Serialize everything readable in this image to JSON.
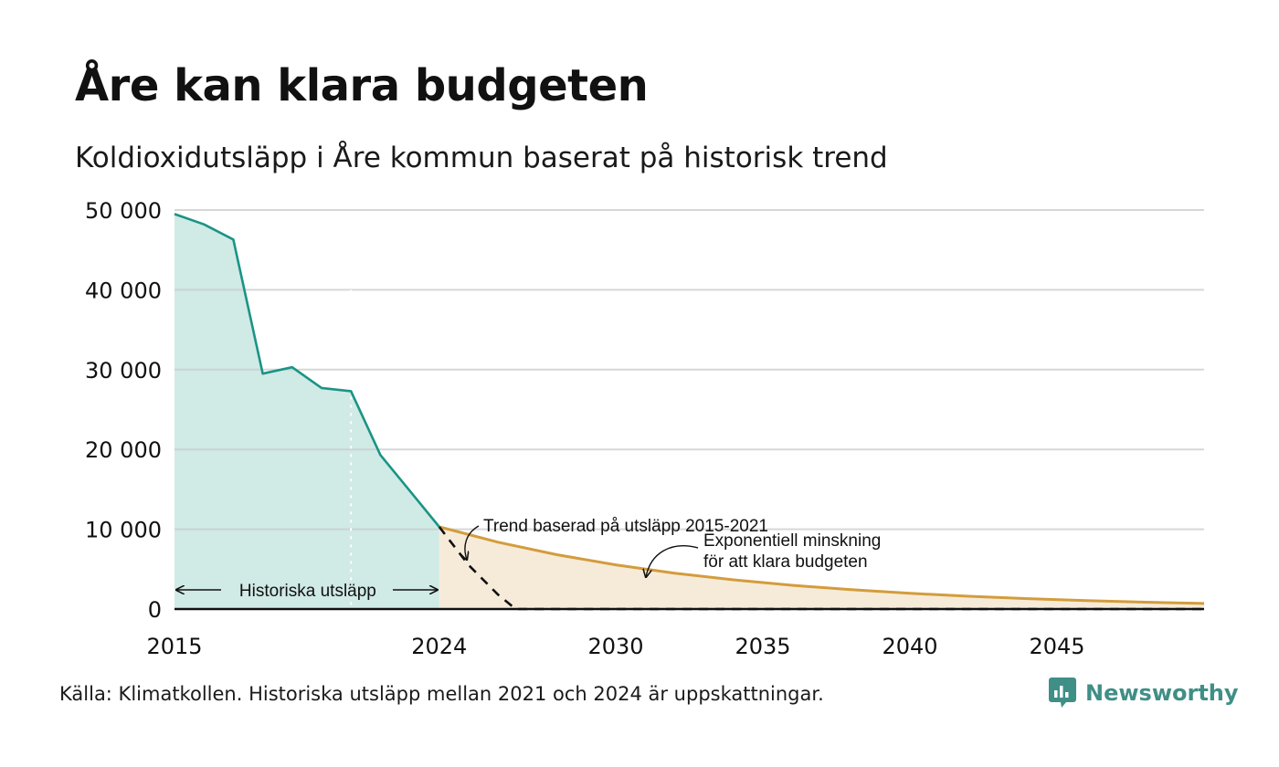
{
  "title": "Åre kan klara budgeten",
  "subtitle": "Koldioxidutsläpp i Åre kommun baserat på historisk trend",
  "source": "Källa: Klimatkollen. Historiska utsläpp mellan 2021 och 2024 är uppskattningar.",
  "brand": {
    "name": "Newsworthy",
    "icon": "newsworthy-logo-icon",
    "color": "#3f8f86"
  },
  "chart_data": {
    "type": "area",
    "title": "Åre kan klara budgeten",
    "subtitle": "Koldioxidutsläpp i Åre kommun baserat på historisk trend",
    "xlabel": "",
    "ylabel": "",
    "xlim": [
      2015,
      2050
    ],
    "ylim": [
      0,
      50000
    ],
    "grid": true,
    "x_ticks": [
      2015,
      2024,
      2030,
      2035,
      2040,
      2045
    ],
    "x_tick_labels": [
      "2015",
      "2024",
      "2030",
      "2035",
      "2040",
      "2045"
    ],
    "y_ticks": [
      0,
      10000,
      20000,
      30000,
      40000,
      50000
    ],
    "y_tick_labels": [
      "0",
      "10 000",
      "20 000",
      "30 000",
      "40 000",
      "50 000"
    ],
    "series": [
      {
        "name": "Historiska utsläpp",
        "style": "area",
        "color": "#1a9485",
        "fill": "#d0eae5",
        "x": [
          2015,
          2016,
          2017,
          2018,
          2019,
          2020,
          2021,
          2022,
          2023,
          2024
        ],
        "y": [
          49500,
          48200,
          46300,
          29500,
          30300,
          27700,
          27300,
          19300,
          14800,
          10300
        ]
      },
      {
        "name": "Trend baserad på utsläpp 2015-2021",
        "style": "dashed",
        "color": "#111111",
        "x": [
          2024,
          2025,
          2026,
          2026.6,
          2027,
          2030,
          2035,
          2040,
          2045,
          2050
        ],
        "y": [
          10300,
          5500,
          1800,
          0,
          0,
          0,
          0,
          0,
          0,
          0
        ]
      },
      {
        "name": "Exponentiell minskning för att klara budgeten",
        "style": "area",
        "color": "#d39c3c",
        "fill": "#f6ebd9",
        "x": [
          2024,
          2026,
          2028,
          2030,
          2032,
          2034,
          2036,
          2038,
          2040,
          2042,
          2044,
          2046,
          2048,
          2050
        ],
        "y": [
          10300,
          8380,
          6810,
          5540,
          4500,
          3660,
          2980,
          2420,
          1970,
          1600,
          1300,
          1060,
          860,
          700
        ]
      }
    ],
    "annotations": {
      "historical": "Historiska utsläpp",
      "trend": "Trend baserad på utsläpp 2015-2021",
      "exponential_line1": "Exponentiell minskning",
      "exponential_line2": "för att klara budgeten"
    }
  }
}
